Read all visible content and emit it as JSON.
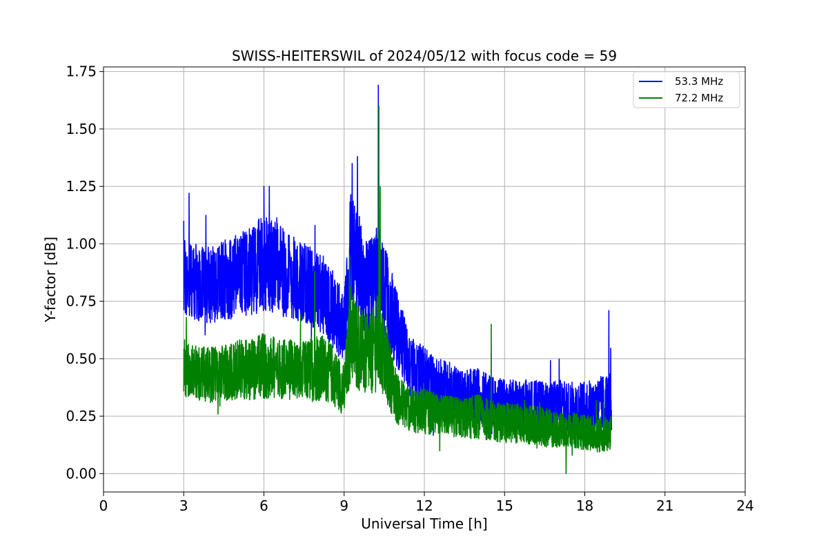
{
  "chart_data": {
    "type": "line",
    "title": "SWISS-HEITERSWIL of 2024/05/12 with focus code = 59",
    "xlabel": "Universal Time [h]",
    "ylabel": "Y-factor [dB]",
    "xlim": [
      0,
      24
    ],
    "ylim": [
      -0.08,
      1.77
    ],
    "xticks": [
      0,
      3,
      6,
      9,
      12,
      15,
      18,
      21,
      24
    ],
    "xtick_labels": [
      "0",
      "3",
      "6",
      "9",
      "12",
      "15",
      "18",
      "21",
      "24"
    ],
    "yticks": [
      0.0,
      0.25,
      0.5,
      0.75,
      1.0,
      1.25,
      1.5,
      1.75
    ],
    "ytick_labels": [
      "0.00",
      "0.25",
      "0.50",
      "0.75",
      "1.00",
      "1.25",
      "1.50",
      "1.75"
    ],
    "grid": true,
    "legend_position": "top-right",
    "series": [
      {
        "name": "53.3 MHz",
        "color": "#0000ff",
        "x": [
          3.0,
          3.5,
          4.0,
          4.5,
          5.0,
          5.5,
          6.0,
          6.5,
          7.0,
          7.5,
          8.0,
          8.5,
          9.0,
          9.25,
          9.5,
          9.75,
          10.0,
          10.28,
          10.5,
          11.0,
          11.5,
          12.0,
          12.5,
          13.0,
          13.5,
          14.0,
          14.5,
          15.0,
          15.5,
          16.0,
          16.5,
          17.0,
          17.5,
          18.0,
          18.5,
          19.0
        ],
        "center": [
          0.85,
          0.83,
          0.82,
          0.84,
          0.86,
          0.88,
          0.92,
          0.89,
          0.86,
          0.83,
          0.8,
          0.74,
          0.62,
          0.98,
          0.92,
          0.8,
          0.8,
          0.85,
          0.78,
          0.62,
          0.46,
          0.42,
          0.38,
          0.36,
          0.34,
          0.34,
          0.32,
          0.3,
          0.3,
          0.3,
          0.29,
          0.3,
          0.29,
          0.29,
          0.3,
          0.31
        ],
        "spread": [
          0.16,
          0.15,
          0.15,
          0.16,
          0.17,
          0.18,
          0.19,
          0.18,
          0.17,
          0.16,
          0.16,
          0.16,
          0.14,
          0.25,
          0.22,
          0.2,
          0.2,
          0.22,
          0.2,
          0.15,
          0.12,
          0.12,
          0.11,
          0.11,
          0.1,
          0.11,
          0.1,
          0.1,
          0.1,
          0.1,
          0.1,
          0.1,
          0.1,
          0.1,
          0.11,
          0.12
        ],
        "peaks": [
          [
            3.0,
            1.1
          ],
          [
            3.2,
            1.22
          ],
          [
            6.0,
            1.25
          ],
          [
            6.2,
            1.25
          ],
          [
            9.3,
            1.35
          ],
          [
            9.5,
            1.38
          ],
          [
            10.28,
            1.69
          ],
          [
            18.9,
            0.71
          ]
        ]
      },
      {
        "name": "72.2 MHz",
        "color": "#008000",
        "x": [
          3.0,
          3.5,
          4.0,
          4.5,
          5.0,
          5.5,
          6.0,
          6.5,
          7.0,
          7.5,
          8.0,
          8.5,
          9.0,
          9.25,
          9.5,
          9.75,
          10.0,
          10.3,
          10.5,
          11.0,
          11.5,
          12.0,
          12.5,
          13.0,
          13.5,
          14.0,
          14.5,
          15.0,
          15.5,
          16.0,
          16.5,
          17.0,
          17.5,
          18.0,
          18.5,
          19.0
        ],
        "center": [
          0.46,
          0.44,
          0.43,
          0.44,
          0.45,
          0.45,
          0.47,
          0.46,
          0.45,
          0.44,
          0.47,
          0.44,
          0.36,
          0.62,
          0.56,
          0.52,
          0.52,
          0.58,
          0.5,
          0.32,
          0.28,
          0.27,
          0.26,
          0.25,
          0.24,
          0.25,
          0.23,
          0.22,
          0.22,
          0.21,
          0.2,
          0.19,
          0.19,
          0.18,
          0.17,
          0.18
        ],
        "spread": [
          0.12,
          0.11,
          0.11,
          0.11,
          0.12,
          0.12,
          0.13,
          0.12,
          0.12,
          0.12,
          0.14,
          0.12,
          0.1,
          0.2,
          0.18,
          0.16,
          0.16,
          0.2,
          0.16,
          0.1,
          0.09,
          0.09,
          0.08,
          0.08,
          0.08,
          0.09,
          0.08,
          0.08,
          0.08,
          0.08,
          0.08,
          0.07,
          0.07,
          0.07,
          0.07,
          0.07
        ],
        "peaks": [
          [
            3.1,
            0.68
          ],
          [
            7.9,
            0.88
          ],
          [
            9.2,
            0.95
          ],
          [
            10.3,
            1.6
          ],
          [
            10.35,
            1.25
          ],
          [
            14.5,
            0.65
          ],
          [
            17.3,
            0.0
          ]
        ]
      }
    ]
  }
}
